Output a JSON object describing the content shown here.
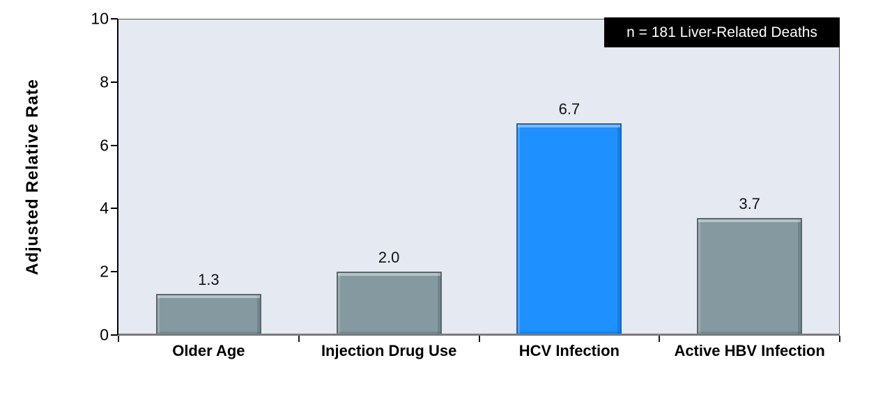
{
  "chart_data": {
    "type": "bar",
    "categories": [
      "Older Age",
      "Injection Drug Use",
      "HCV Infection",
      "Active HBV Infection"
    ],
    "values": [
      1.3,
      2.0,
      6.7,
      3.7
    ],
    "value_labels": [
      "1.3",
      "2.0",
      "6.7",
      "3.7"
    ],
    "bar_fill_colors": [
      "#8599A1",
      "#8599A1",
      "#1E90FF",
      "#8599A1"
    ],
    "bar_border_colors": [
      "#59666C",
      "#59666C",
      "#1566BE",
      "#59666C"
    ],
    "highlight_color": "#1E90FF",
    "default_bar_color": "#8599A1",
    "title": "",
    "xlabel": "",
    "ylabel": "Adjusted Relative Rate",
    "ylim": [
      0,
      10
    ],
    "yticks": [
      0,
      2,
      4,
      6,
      8,
      10
    ],
    "grid": false,
    "legend": "none",
    "plot_bg": "#E5E9F1",
    "page_bg": "#FFFFFF",
    "annotation": {
      "text": "n = 181 Liver-Related Deaths",
      "bg": "#000000",
      "fg": "#FFFFFF",
      "position": "top-right"
    }
  }
}
